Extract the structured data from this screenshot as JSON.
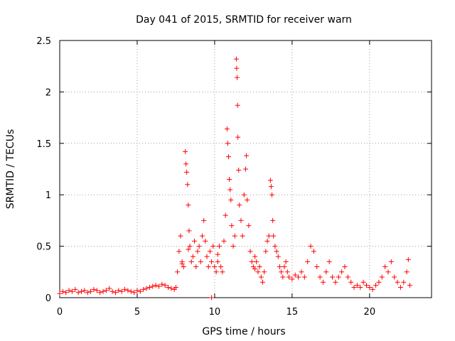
{
  "chart_data": {
    "type": "scatter",
    "title": "Day 041 of 2015, SRMTID for receiver warn",
    "xlabel": "GPS time / hours",
    "ylabel": "SRMTID / TECUs",
    "xlim": [
      0,
      24
    ],
    "ylim": [
      0,
      2.5
    ],
    "xticks": [
      0,
      5,
      10,
      15,
      20
    ],
    "yticks": [
      0,
      0.5,
      1,
      1.5,
      2,
      2.5
    ],
    "xtick_labels": [
      "0",
      "5",
      "10",
      "15",
      "20"
    ],
    "ytick_labels": [
      "0",
      "0.5",
      "1",
      "1.5",
      "2",
      "2.5"
    ],
    "grid": true,
    "marker": "+",
    "color": "#ff0000",
    "series": [
      {
        "name": "SRMTID",
        "points": [
          [
            0.0,
            0.04
          ],
          [
            0.2,
            0.06
          ],
          [
            0.4,
            0.05
          ],
          [
            0.6,
            0.07
          ],
          [
            0.8,
            0.06
          ],
          [
            1.0,
            0.08
          ],
          [
            1.2,
            0.05
          ],
          [
            1.4,
            0.06
          ],
          [
            1.6,
            0.07
          ],
          [
            1.8,
            0.05
          ],
          [
            2.0,
            0.06
          ],
          [
            2.2,
            0.08
          ],
          [
            2.4,
            0.07
          ],
          [
            2.6,
            0.05
          ],
          [
            2.8,
            0.06
          ],
          [
            3.0,
            0.07
          ],
          [
            3.2,
            0.09
          ],
          [
            3.4,
            0.06
          ],
          [
            3.6,
            0.05
          ],
          [
            3.8,
            0.07
          ],
          [
            4.0,
            0.06
          ],
          [
            4.2,
            0.08
          ],
          [
            4.4,
            0.07
          ],
          [
            4.6,
            0.06
          ],
          [
            4.8,
            0.05
          ],
          [
            5.0,
            0.07
          ],
          [
            5.2,
            0.06
          ],
          [
            5.4,
            0.08
          ],
          [
            5.6,
            0.09
          ],
          [
            5.8,
            0.1
          ],
          [
            6.0,
            0.11
          ],
          [
            6.2,
            0.12
          ],
          [
            6.4,
            0.11
          ],
          [
            6.6,
            0.13
          ],
          [
            6.8,
            0.12
          ],
          [
            7.0,
            0.1
          ],
          [
            7.2,
            0.09
          ],
          [
            7.4,
            0.08
          ],
          [
            7.5,
            0.1
          ],
          [
            7.6,
            0.25
          ],
          [
            7.7,
            0.45
          ],
          [
            7.8,
            0.6
          ],
          [
            7.9,
            0.35
          ],
          [
            8.0,
            0.3
          ],
          [
            8.1,
            1.42
          ],
          [
            8.15,
            1.3
          ],
          [
            8.2,
            1.22
          ],
          [
            8.25,
            1.1
          ],
          [
            8.3,
            0.9
          ],
          [
            8.35,
            0.65
          ],
          [
            8.4,
            0.5
          ],
          [
            8.5,
            0.35
          ],
          [
            8.6,
            0.4
          ],
          [
            8.7,
            0.55
          ],
          [
            8.8,
            0.3
          ],
          [
            8.9,
            0.45
          ],
          [
            9.0,
            0.5
          ],
          [
            9.1,
            0.35
          ],
          [
            9.2,
            0.6
          ],
          [
            9.3,
            0.75
          ],
          [
            9.4,
            0.55
          ],
          [
            9.5,
            0.4
          ],
          [
            9.6,
            0.3
          ],
          [
            9.7,
            0.45
          ],
          [
            9.8,
            0.35
          ],
          [
            9.9,
            0.5
          ],
          [
            10.0,
            0.3
          ],
          [
            10.1,
            0.25
          ],
          [
            10.2,
            0.35
          ],
          [
            10.3,
            0.5
          ],
          [
            10.4,
            0.3
          ],
          [
            10.5,
            0.25
          ],
          [
            10.6,
            0.55
          ],
          [
            10.7,
            0.8
          ],
          [
            10.8,
            1.64
          ],
          [
            10.85,
            1.5
          ],
          [
            10.9,
            1.37
          ],
          [
            10.95,
            1.15
          ],
          [
            11.0,
            1.05
          ],
          [
            11.05,
            0.95
          ],
          [
            11.1,
            0.7
          ],
          [
            11.2,
            0.5
          ],
          [
            11.3,
            0.6
          ],
          [
            11.4,
            2.32
          ],
          [
            11.42,
            2.23
          ],
          [
            11.45,
            2.14
          ],
          [
            11.48,
            1.87
          ],
          [
            11.5,
            1.56
          ],
          [
            11.55,
            1.24
          ],
          [
            11.6,
            0.9
          ],
          [
            11.7,
            0.75
          ],
          [
            11.8,
            0.6
          ],
          [
            11.9,
            1.0
          ],
          [
            12.0,
            1.25
          ],
          [
            12.05,
            1.38
          ],
          [
            12.1,
            0.95
          ],
          [
            12.2,
            0.7
          ],
          [
            12.3,
            0.45
          ],
          [
            12.4,
            0.35
          ],
          [
            12.5,
            0.3
          ],
          [
            12.6,
            0.4
          ],
          [
            12.7,
            0.35
          ],
          [
            12.8,
            0.25
          ],
          [
            12.9,
            0.3
          ],
          [
            13.0,
            0.2
          ],
          [
            13.1,
            0.15
          ],
          [
            13.2,
            0.25
          ],
          [
            13.3,
            0.45
          ],
          [
            13.4,
            0.55
          ],
          [
            13.5,
            0.6
          ],
          [
            13.6,
            1.14
          ],
          [
            13.65,
            1.08
          ],
          [
            13.7,
            1.0
          ],
          [
            13.75,
            0.75
          ],
          [
            13.8,
            0.6
          ],
          [
            13.9,
            0.5
          ],
          [
            14.0,
            0.45
          ],
          [
            14.1,
            0.4
          ],
          [
            14.2,
            0.3
          ],
          [
            14.3,
            0.25
          ],
          [
            14.4,
            0.2
          ],
          [
            14.5,
            0.3
          ],
          [
            14.6,
            0.35
          ],
          [
            14.7,
            0.25
          ],
          [
            14.8,
            0.2
          ],
          [
            15.0,
            0.18
          ],
          [
            15.2,
            0.22
          ],
          [
            15.4,
            0.2
          ],
          [
            15.6,
            0.25
          ],
          [
            15.8,
            0.2
          ],
          [
            16.0,
            0.35
          ],
          [
            16.2,
            0.5
          ],
          [
            16.4,
            0.45
          ],
          [
            16.6,
            0.3
          ],
          [
            16.8,
            0.2
          ],
          [
            17.0,
            0.15
          ],
          [
            17.2,
            0.25
          ],
          [
            17.4,
            0.35
          ],
          [
            17.6,
            0.2
          ],
          [
            17.8,
            0.15
          ],
          [
            18.0,
            0.2
          ],
          [
            18.2,
            0.25
          ],
          [
            18.4,
            0.3
          ],
          [
            18.6,
            0.2
          ],
          [
            18.8,
            0.15
          ],
          [
            19.0,
            0.1
          ],
          [
            19.2,
            0.12
          ],
          [
            19.4,
            0.1
          ],
          [
            19.6,
            0.15
          ],
          [
            19.8,
            0.12
          ],
          [
            20.0,
            0.1
          ],
          [
            20.2,
            0.08
          ],
          [
            20.4,
            0.12
          ],
          [
            20.6,
            0.15
          ],
          [
            20.8,
            0.2
          ],
          [
            21.0,
            0.3
          ],
          [
            21.2,
            0.25
          ],
          [
            21.4,
            0.35
          ],
          [
            21.6,
            0.2
          ],
          [
            21.8,
            0.15
          ],
          [
            22.0,
            0.1
          ],
          [
            22.2,
            0.15
          ],
          [
            22.4,
            0.25
          ],
          [
            22.5,
            0.37
          ],
          [
            22.6,
            0.12
          ],
          [
            9.8,
            0.0
          ],
          [
            7.9,
            0.33
          ],
          [
            8.3,
            0.47
          ],
          [
            10.2,
            0.42
          ],
          [
            12.6,
            0.28
          ]
        ]
      }
    ]
  }
}
